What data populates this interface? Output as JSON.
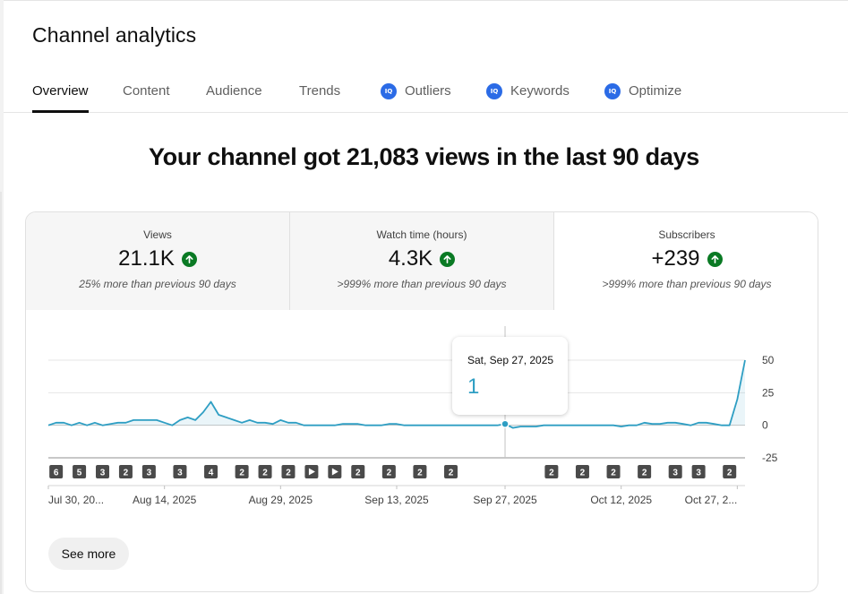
{
  "page": {
    "title": "Channel analytics"
  },
  "tabs": [
    {
      "label": "Overview",
      "active": true
    },
    {
      "label": "Content"
    },
    {
      "label": "Audience"
    },
    {
      "label": "Trends"
    },
    {
      "label": "Outliers",
      "badge": "IQ"
    },
    {
      "label": "Keywords",
      "badge": "IQ"
    },
    {
      "label": "Optimize",
      "badge": "IQ"
    }
  ],
  "headline": "Your channel got 21,083 views in the last 90 days",
  "metrics": [
    {
      "label": "Views",
      "value": "21.1K",
      "trend": "up",
      "comparison": "25% more than previous 90 days"
    },
    {
      "label": "Watch time (hours)",
      "value": "4.3K",
      "trend": "up",
      "comparison": ">999% more than previous 90 days"
    },
    {
      "label": "Subscribers",
      "value": "+239",
      "trend": "up",
      "comparison": ">999% more than previous 90 days",
      "selected": true
    }
  ],
  "colors": {
    "accent": "#2e9ec3",
    "positive": "#0a7a24",
    "iq_badge": "#2b6be6"
  },
  "tooltip": {
    "date": "Sat, Sep 27, 2025",
    "value": "1"
  },
  "see_more_label": "See more",
  "chart_data": {
    "type": "line",
    "series_label": "Subscribers",
    "y_ticks": [
      "50",
      "25",
      "0",
      "-25"
    ],
    "ylim": [
      -25,
      50
    ],
    "x_ticks": [
      "Jul 30, 20...",
      "Aug 14, 2025",
      "Aug 29, 2025",
      "Sep 13, 2025",
      "Sep 27, 2025",
      "Oct 12, 2025",
      "Oct 27, 2..."
    ],
    "x_tick_days": [
      0,
      15,
      30,
      45,
      59,
      74,
      89
    ],
    "values": [
      0,
      2,
      2,
      0,
      2,
      0,
      2,
      0,
      1,
      2,
      2,
      4,
      4,
      4,
      4,
      2,
      0,
      4,
      6,
      4,
      10,
      18,
      8,
      6,
      4,
      2,
      4,
      2,
      2,
      1,
      4,
      2,
      2,
      0,
      0,
      0,
      0,
      0,
      1,
      1,
      1,
      0,
      0,
      0,
      1,
      1,
      0,
      0,
      0,
      0,
      0,
      0,
      0,
      0,
      0,
      0,
      0,
      0,
      0,
      1,
      -2,
      -1,
      -1,
      -1,
      0,
      0,
      0,
      0,
      0,
      0,
      0,
      0,
      0,
      0,
      -1,
      0,
      0,
      2,
      1,
      1,
      2,
      2,
      1,
      0,
      2,
      2,
      1,
      0,
      0,
      20,
      50
    ],
    "highlight_index": 59,
    "annotations": [
      {
        "day": 1,
        "label": "6",
        "kind": "count"
      },
      {
        "day": 4,
        "label": "5",
        "kind": "count"
      },
      {
        "day": 7,
        "label": "3",
        "kind": "count"
      },
      {
        "day": 10,
        "label": "2",
        "kind": "count"
      },
      {
        "day": 13,
        "label": "3",
        "kind": "count"
      },
      {
        "day": 17,
        "label": "3",
        "kind": "count"
      },
      {
        "day": 21,
        "label": "4",
        "kind": "count"
      },
      {
        "day": 25,
        "label": "2",
        "kind": "count"
      },
      {
        "day": 28,
        "label": "2",
        "kind": "count"
      },
      {
        "day": 31,
        "label": "2",
        "kind": "count"
      },
      {
        "day": 34,
        "label": "",
        "kind": "play"
      },
      {
        "day": 37,
        "label": "",
        "kind": "play"
      },
      {
        "day": 40,
        "label": "2",
        "kind": "count"
      },
      {
        "day": 44,
        "label": "2",
        "kind": "count"
      },
      {
        "day": 48,
        "label": "2",
        "kind": "count"
      },
      {
        "day": 52,
        "label": "2",
        "kind": "count"
      },
      {
        "day": 65,
        "label": "2",
        "kind": "count"
      },
      {
        "day": 69,
        "label": "2",
        "kind": "count"
      },
      {
        "day": 73,
        "label": "2",
        "kind": "count"
      },
      {
        "day": 77,
        "label": "2",
        "kind": "count"
      },
      {
        "day": 81,
        "label": "3",
        "kind": "count"
      },
      {
        "day": 84,
        "label": "3",
        "kind": "count"
      },
      {
        "day": 88,
        "label": "2",
        "kind": "count"
      }
    ]
  }
}
